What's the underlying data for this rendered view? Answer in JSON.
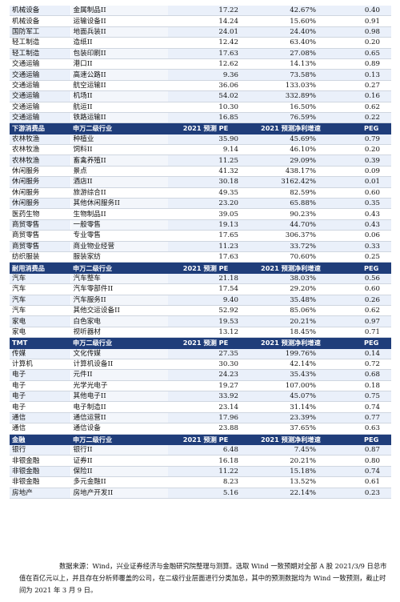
{
  "columns": {
    "sub_industry": "申万二级行业",
    "pe": "2021 预测 PE",
    "growth": "2021 预测净利增速",
    "peg": "PEG"
  },
  "groups": [
    {
      "header": "",
      "rows": [
        [
          "机械设备",
          "金属制品II",
          "17.22",
          "42.67%",
          "0.40"
        ],
        [
          "机械设备",
          "运输设备II",
          "14.24",
          "15.60%",
          "0.91"
        ],
        [
          "国防军工",
          "地面兵装II",
          "24.01",
          "24.40%",
          "0.98"
        ],
        [
          "轻工制造",
          "造纸II",
          "12.42",
          "63.40%",
          "0.20"
        ],
        [
          "轻工制造",
          "包装印刷II",
          "17.63",
          "27.08%",
          "0.65"
        ],
        [
          "交通运输",
          "港口II",
          "12.62",
          "14.13%",
          "0.89"
        ],
        [
          "交通运输",
          "高速公路II",
          "9.36",
          "73.58%",
          "0.13"
        ],
        [
          "交通运输",
          "航空运输II",
          "36.06",
          "133.03%",
          "0.27"
        ],
        [
          "交通运输",
          "机场II",
          "54.02",
          "332.89%",
          "0.16"
        ],
        [
          "交通运输",
          "航运II",
          "10.30",
          "16.50%",
          "0.62"
        ],
        [
          "交通运输",
          "铁路运输II",
          "16.85",
          "76.59%",
          "0.22"
        ]
      ]
    },
    {
      "header": "下游消费品",
      "rows": [
        [
          "农林牧渔",
          "种植业",
          "35.90",
          "45.69%",
          "0.79"
        ],
        [
          "农林牧渔",
          "饲料II",
          "9.14",
          "46.10%",
          "0.20"
        ],
        [
          "农林牧渔",
          "畜禽养殖II",
          "11.25",
          "29.09%",
          "0.39"
        ],
        [
          "休闲服务",
          "景点",
          "41.32",
          "438.17%",
          "0.09"
        ],
        [
          "休闲服务",
          "酒店II",
          "30.18",
          "3162.42%",
          "0.01"
        ],
        [
          "休闲服务",
          "旅游综合II",
          "49.35",
          "82.59%",
          "0.60"
        ],
        [
          "休闲服务",
          "其他休闲服务II",
          "23.20",
          "65.88%",
          "0.35"
        ],
        [
          "医药生物",
          "生物制品II",
          "39.05",
          "90.23%",
          "0.43"
        ],
        [
          "商贸零售",
          "一般零售",
          "19.13",
          "44.70%",
          "0.43"
        ],
        [
          "商贸零售",
          "专业零售",
          "17.65",
          "306.37%",
          "0.06"
        ],
        [
          "商贸零售",
          "商业物业经营",
          "11.23",
          "33.72%",
          "0.33"
        ],
        [
          "纺织服装",
          "服装家纺",
          "17.63",
          "70.60%",
          "0.25"
        ]
      ]
    },
    {
      "header": "耐用消费品",
      "rows": [
        [
          "汽车",
          "汽车整车",
          "21.18",
          "38.03%",
          "0.56"
        ],
        [
          "汽车",
          "汽车零部件II",
          "17.54",
          "29.20%",
          "0.60"
        ],
        [
          "汽车",
          "汽车服务II",
          "9.40",
          "35.48%",
          "0.26"
        ],
        [
          "汽车",
          "其他交运设备II",
          "52.92",
          "85.06%",
          "0.62"
        ],
        [
          "家电",
          "白色家电",
          "19.53",
          "20.21%",
          "0.97"
        ],
        [
          "家电",
          "视听器材",
          "13.12",
          "18.45%",
          "0.71"
        ]
      ]
    },
    {
      "header": "TMT",
      "rows": [
        [
          "传媒",
          "文化传媒",
          "27.35",
          "199.76%",
          "0.14"
        ],
        [
          "计算机",
          "计算机设备II",
          "30.30",
          "42.14%",
          "0.72"
        ],
        [
          "电子",
          "元件II",
          "24.23",
          "35.43%",
          "0.68"
        ],
        [
          "电子",
          "光学光电子",
          "19.27",
          "107.00%",
          "0.18"
        ],
        [
          "电子",
          "其他电子II",
          "33.92",
          "45.07%",
          "0.75"
        ],
        [
          "电子",
          "电子制造II",
          "23.14",
          "31.14%",
          "0.74"
        ],
        [
          "通信",
          "通信运营II",
          "17.96",
          "23.39%",
          "0.77"
        ],
        [
          "通信",
          "通信设备",
          "23.88",
          "37.65%",
          "0.63"
        ]
      ]
    },
    {
      "header": "金融",
      "rows": [
        [
          "银行",
          "银行II",
          "6.48",
          "7.45%",
          "0.87"
        ],
        [
          "非银金融",
          "证券II",
          "16.18",
          "20.21%",
          "0.80"
        ],
        [
          "非银金融",
          "保险II",
          "11.22",
          "15.18%",
          "0.74"
        ],
        [
          "非银金融",
          "多元金融II",
          "8.23",
          "13.52%",
          "0.61"
        ],
        [
          "房地产",
          "房地产开发II",
          "5.16",
          "22.14%",
          "0.23"
        ]
      ]
    }
  ],
  "note": "数据来源：Wind，兴业证券经济与金融研究院整理与测算。选取 Wind 一致预期对全部 A 股 2021/3/9 日总市值在百亿元以上，并且存在分析师覆盖的公司，在二级行业层面进行分类加总，其中的预测数据均为 Wind 一致预测，截止时间为 2021 年 3 月 9 日。"
}
